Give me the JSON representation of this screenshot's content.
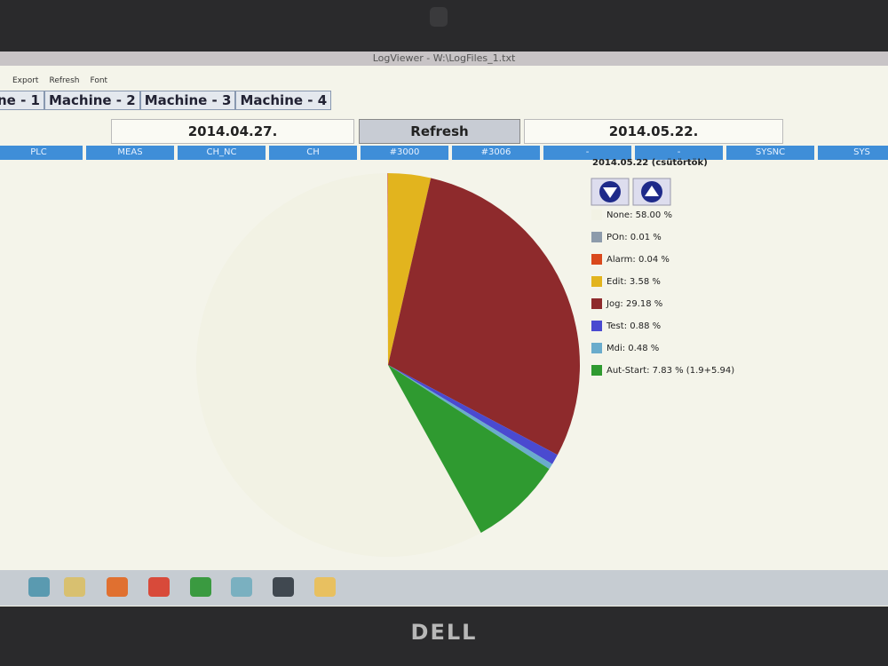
{
  "window": {
    "title": "LogViewer - W:\\LogFiles_1.txt",
    "menu": [
      "Export",
      "Refresh",
      "Font"
    ]
  },
  "tabs": [
    "ne - 1",
    "Machine - 2",
    "Machine - 3",
    "Machine - 4"
  ],
  "toolbar": {
    "start_date": "2014.04.27.",
    "refresh": "Refresh",
    "end_date": "2014.05.22."
  },
  "columns": [
    "PLC",
    "MEAS",
    "CH_NC",
    "CH",
    "#3000",
    "#3006",
    "-",
    "-",
    "SYSNC",
    "SYS"
  ],
  "chart_data": {
    "type": "pie",
    "title": "2014.05.22 (csütörtök)",
    "values": [
      58.0,
      0.01,
      0.04,
      3.58,
      29.18,
      0.88,
      0.48,
      7.83
    ],
    "value_labels": [
      "None: 58.00 %",
      "POn: 0.01 %",
      "Alarm: 0.04 %",
      "Edit: 3.58 %",
      "Jog: 29.18 %",
      "Test: 0.88 %",
      "Mdi: 0.48 %",
      "Aut-Start: 7.83 % (1.9+5.94)"
    ],
    "colors": [
      "#f2f2e4",
      "#8d9bab",
      "#d9481c",
      "#e2b41e",
      "#8e2a2c",
      "#4a4ad0",
      "#6aaccc",
      "#2f9a30"
    ]
  },
  "bezel": {
    "logo": "DELL"
  }
}
